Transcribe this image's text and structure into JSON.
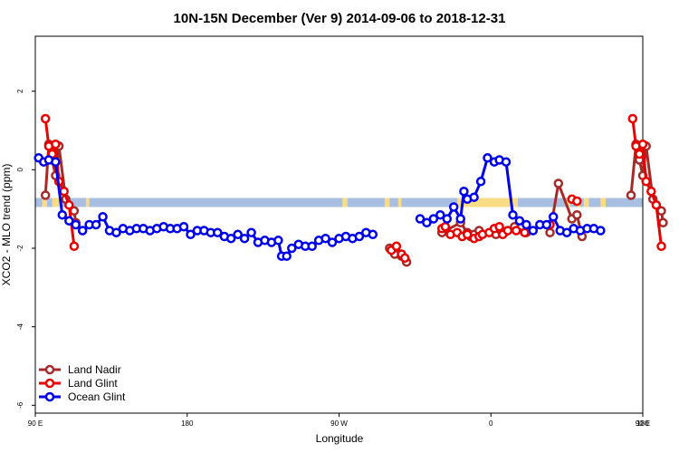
{
  "chart_data": {
    "type": "line",
    "title": "10N-15N December (Ver 9)   2014-09-06 to 2018-12-31",
    "xlabel": "Longitude",
    "ylabel": "XCO2 - MLO trend (ppm)",
    "xlim": [
      90,
      450
    ],
    "ylim": [
      -6.2,
      3.4
    ],
    "x_ticks": [
      {
        "value": 90,
        "label": "90 E"
      },
      {
        "value": 180,
        "label": "180"
      },
      {
        "value": 270,
        "label": "90 W"
      },
      {
        "value": 360,
        "label": "0"
      },
      {
        "value": 450,
        "label": "90 E"
      },
      {
        "value": 540,
        "label": "180"
      }
    ],
    "y_ticks": [
      {
        "value": 2,
        "label": "2"
      },
      {
        "value": 0,
        "label": "0"
      },
      {
        "value": -2,
        "label": "-2"
      },
      {
        "value": -4,
        "label": "-4"
      },
      {
        "value": -6,
        "label": "-6"
      }
    ],
    "x_unit_note": "",
    "land_band": {
      "y_range": [
        -0.95,
        -0.72
      ],
      "ocean_color": "#a9bfe1",
      "land_color": "#f9dc86",
      "land_segments": [
        [
          94,
          97
        ],
        [
          100,
          106
        ],
        [
          120,
          122
        ],
        [
          272,
          275
        ],
        [
          297,
          300
        ],
        [
          305,
          307
        ],
        [
          340,
          376
        ],
        [
          405,
          407
        ],
        [
          411,
          413
        ],
        [
          415,
          418
        ],
        [
          425,
          428
        ]
      ]
    },
    "legend": {
      "position": "bottom-left"
    },
    "series": [
      {
        "name": "Land Nadir",
        "color": "#a52a2a",
        "points": [
          [
            96,
            -0.65
          ],
          [
            98,
            0.65
          ],
          [
            100,
            0.25
          ],
          [
            102,
            -0.15
          ],
          [
            104,
            0.6
          ],
          [
            108,
            -0.75
          ],
          [
            113,
            -1.05
          ],
          [
            114,
            -1.35
          ],
          [
            300,
            -2.0
          ],
          [
            303,
            -2.15
          ],
          [
            307,
            -2.2
          ],
          [
            310,
            -2.35
          ],
          [
            331,
            -1.6
          ],
          [
            342,
            -1.35
          ],
          [
            346,
            -1.6
          ],
          [
            348,
            -1.7
          ],
          [
            350,
            -1.65
          ],
          [
            353,
            -1.55
          ],
          [
            363,
            -1.65
          ],
          [
            366,
            -1.55
          ],
          [
            368,
            -1.6
          ],
          [
            374,
            -1.45
          ],
          [
            381,
            -1.6
          ],
          [
            395,
            -1.6
          ],
          [
            400,
            -0.35
          ],
          [
            408,
            -1.25
          ],
          [
            411,
            -1.15
          ],
          [
            414,
            -1.7
          ],
          [
            443,
            -0.65
          ],
          [
            446,
            0.65
          ],
          [
            448,
            0.25
          ],
          [
            450,
            -0.15
          ],
          [
            452,
            0.6
          ],
          [
            456,
            -0.75
          ],
          [
            461,
            -1.05
          ],
          [
            462,
            -1.35
          ]
        ]
      },
      {
        "name": "Land Glint",
        "color": "#e60000",
        "points": [
          [
            96,
            1.3
          ],
          [
            98,
            0.6
          ],
          [
            100,
            0.4
          ],
          [
            102,
            0.65
          ],
          [
            104,
            -0.3
          ],
          [
            107,
            -0.55
          ],
          [
            110,
            -0.9
          ],
          [
            113,
            -1.95
          ],
          [
            301,
            -2.05
          ],
          [
            304,
            -1.95
          ],
          [
            307,
            -2.15
          ],
          [
            309,
            -2.25
          ],
          [
            331,
            -1.5
          ],
          [
            333,
            -1.45
          ],
          [
            336,
            -1.65
          ],
          [
            340,
            -1.6
          ],
          [
            343,
            -1.7
          ],
          [
            346,
            -1.65
          ],
          [
            350,
            -1.75
          ],
          [
            353,
            -1.7
          ],
          [
            355,
            -1.65
          ],
          [
            359,
            -1.6
          ],
          [
            362,
            -1.5
          ],
          [
            365,
            -1.45
          ],
          [
            367,
            -1.65
          ],
          [
            370,
            -1.55
          ],
          [
            375,
            -1.55
          ],
          [
            380,
            -1.6
          ],
          [
            395,
            -1.4
          ],
          [
            408,
            -0.75
          ],
          [
            411,
            -0.8
          ],
          [
            444,
            1.3
          ],
          [
            446,
            0.6
          ],
          [
            448,
            0.4
          ],
          [
            450,
            0.65
          ],
          [
            452,
            -0.3
          ],
          [
            455,
            -0.55
          ],
          [
            458,
            -0.9
          ],
          [
            461,
            -1.95
          ]
        ]
      },
      {
        "name": "Ocean Glint",
        "color": "#0000e6",
        "points": [
          [
            92,
            0.3
          ],
          [
            95,
            0.2
          ],
          [
            98,
            0.25
          ],
          [
            102,
            0.2
          ],
          [
            106,
            -1.15
          ],
          [
            110,
            -1.3
          ],
          [
            114,
            -1.4
          ],
          [
            118,
            -1.55
          ],
          [
            122,
            -1.4
          ],
          [
            126,
            -1.4
          ],
          [
            130,
            -1.2
          ],
          [
            134,
            -1.55
          ],
          [
            138,
            -1.6
          ],
          [
            142,
            -1.5
          ],
          [
            146,
            -1.55
          ],
          [
            150,
            -1.5
          ],
          [
            154,
            -1.5
          ],
          [
            158,
            -1.55
          ],
          [
            162,
            -1.5
          ],
          [
            166,
            -1.45
          ],
          [
            170,
            -1.5
          ],
          [
            174,
            -1.5
          ],
          [
            178,
            -1.45
          ],
          [
            182,
            -1.65
          ],
          [
            186,
            -1.55
          ],
          [
            190,
            -1.55
          ],
          [
            194,
            -1.6
          ],
          [
            198,
            -1.6
          ],
          [
            202,
            -1.7
          ],
          [
            206,
            -1.75
          ],
          [
            210,
            -1.65
          ],
          [
            214,
            -1.75
          ],
          [
            218,
            -1.6
          ],
          [
            222,
            -1.85
          ],
          [
            226,
            -1.8
          ],
          [
            230,
            -1.85
          ],
          [
            234,
            -1.8
          ],
          [
            236,
            -2.2
          ],
          [
            239,
            -2.2
          ],
          [
            242,
            -2.0
          ],
          [
            246,
            -1.9
          ],
          [
            250,
            -1.95
          ],
          [
            254,
            -1.95
          ],
          [
            258,
            -1.8
          ],
          [
            262,
            -1.75
          ],
          [
            266,
            -1.85
          ],
          [
            270,
            -1.75
          ],
          [
            274,
            -1.7
          ],
          [
            278,
            -1.75
          ],
          [
            282,
            -1.7
          ],
          [
            286,
            -1.6
          ],
          [
            290,
            -1.65
          ],
          [
            318,
            -1.25
          ],
          [
            322,
            -1.35
          ],
          [
            326,
            -1.25
          ],
          [
            330,
            -1.15
          ],
          [
            334,
            -1.25
          ],
          [
            338,
            -0.95
          ],
          [
            342,
            -1.25
          ],
          [
            344,
            -0.55
          ],
          [
            346,
            -0.75
          ],
          [
            350,
            -0.7
          ],
          [
            354,
            -0.3
          ],
          [
            358,
            0.3
          ],
          [
            362,
            0.2
          ],
          [
            365,
            0.25
          ],
          [
            369,
            0.2
          ],
          [
            373,
            -1.15
          ],
          [
            377,
            -1.3
          ],
          [
            381,
            -1.4
          ],
          [
            385,
            -1.55
          ],
          [
            389,
            -1.4
          ],
          [
            393,
            -1.4
          ],
          [
            397,
            -1.2
          ],
          [
            401,
            -1.55
          ],
          [
            405,
            -1.6
          ],
          [
            409,
            -1.5
          ],
          [
            413,
            -1.55
          ],
          [
            417,
            -1.5
          ],
          [
            421,
            -1.5
          ],
          [
            425,
            -1.55
          ]
        ]
      }
    ]
  }
}
